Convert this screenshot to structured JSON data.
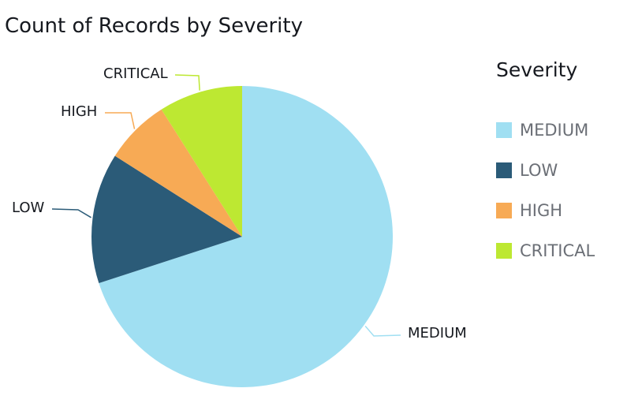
{
  "chart_data": {
    "type": "pie",
    "title": "Count of Records by Severity",
    "categories": [
      "MEDIUM",
      "LOW",
      "HIGH",
      "CRITICAL"
    ],
    "values": [
      70,
      14,
      7,
      9
    ],
    "colors": [
      "#a0dff2",
      "#2b5b78",
      "#f7aa55",
      "#bde832"
    ],
    "legend": {
      "title": "Severity",
      "position": "right"
    }
  }
}
